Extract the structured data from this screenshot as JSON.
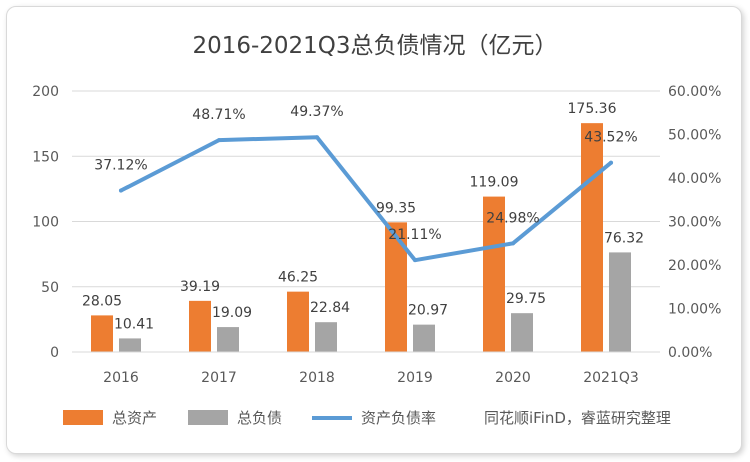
{
  "chart_data": {
    "type": "bar",
    "title": "2016-2021Q3总负债情况（亿元）",
    "categories": [
      "2016",
      "2017",
      "2018",
      "2019",
      "2020",
      "2021Q3"
    ],
    "series": [
      {
        "name": "总资产",
        "kind": "bar",
        "axis": "left",
        "color": "#ED7D31",
        "values": [
          28.05,
          39.19,
          46.25,
          99.35,
          119.09,
          175.36
        ],
        "labels": [
          "28.05",
          "39.19",
          "46.25",
          "99.35",
          "119.09",
          "175.36"
        ]
      },
      {
        "name": "总负债",
        "kind": "bar",
        "axis": "left",
        "color": "#A5A5A5",
        "values": [
          10.41,
          19.09,
          22.84,
          20.97,
          29.75,
          76.32
        ],
        "labels": [
          "10.41",
          "19.09",
          "22.84",
          "20.97",
          "29.75",
          "76.32"
        ]
      },
      {
        "name": "资产负债率",
        "kind": "line",
        "axis": "right",
        "color": "#5B9BD5",
        "values": [
          37.12,
          48.71,
          49.37,
          21.11,
          24.98,
          43.52
        ],
        "labels": [
          "37.12%",
          "48.71%",
          "49.37%",
          "21.11%",
          "24.98%",
          "43.52%"
        ]
      }
    ],
    "y_left": {
      "ylim": [
        0,
        200
      ],
      "ticks": [
        0,
        50,
        100,
        150,
        200
      ],
      "tick_labels": [
        "0",
        "50",
        "100",
        "150",
        "200"
      ]
    },
    "y_right": {
      "ylim": [
        0,
        60
      ],
      "ticks": [
        0,
        10,
        20,
        30,
        40,
        50,
        60
      ],
      "tick_labels": [
        "0.00%",
        "10.00%",
        "20.00%",
        "30.00%",
        "40.00%",
        "50.00%",
        "60.00%"
      ]
    },
    "grid": true,
    "legend_position": "bottom",
    "source_note": "同花顺iFinD，睿蓝研究整理"
  }
}
